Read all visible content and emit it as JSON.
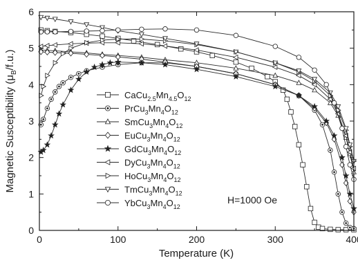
{
  "chart_data": {
    "type": "line",
    "xlabel": "Temperature (K)",
    "ylabel": "Magnetic Susceptibility (μB/f.u.)",
    "xlim": [
      0,
      400
    ],
    "ylim": [
      0,
      6
    ],
    "x_ticks": [
      0,
      100,
      200,
      300,
      400
    ],
    "y_ticks": [
      0,
      1,
      2,
      3,
      4,
      5,
      6
    ],
    "grid": false,
    "legend_placement": "left-middle",
    "annotation": "H=1000 Oe",
    "series": [
      {
        "name": "CaCu2.5Mn4.5O12",
        "label": {
          "base": "CaCu",
          "sub1": "2.5",
          "mid": "Mn",
          "sub2": "4.5",
          "end": "O",
          "sub3": "12"
        },
        "marker": "square",
        "x": [
          2,
          10,
          20,
          40,
          60,
          80,
          100,
          120,
          150,
          180,
          200,
          220,
          250,
          270,
          290,
          300,
          310,
          315,
          320,
          325,
          330,
          335,
          340,
          345,
          350,
          355,
          360,
          370,
          380,
          390,
          400
        ],
        "y": [
          5.5,
          5.48,
          5.46,
          5.43,
          5.38,
          5.33,
          5.27,
          5.2,
          5.1,
          4.98,
          4.9,
          4.8,
          4.62,
          4.45,
          4.22,
          4.08,
          3.85,
          3.6,
          3.25,
          2.85,
          2.35,
          1.8,
          1.2,
          0.6,
          0.22,
          0.09,
          0.05,
          0.03,
          0.02,
          0.02,
          0.02
        ]
      },
      {
        "name": "PrCu3Mn4O12",
        "label": {
          "base": "PrCu",
          "sub1": "3",
          "mid": "Mn",
          "sub2": "4",
          "end": "O",
          "sub3": "12"
        },
        "marker": "circle-dot",
        "x": [
          2,
          5,
          10,
          15,
          20,
          25,
          30,
          40,
          50,
          60,
          80,
          100,
          130,
          160,
          200,
          250,
          300,
          330,
          350,
          360,
          370,
          375,
          380,
          385,
          390,
          395,
          400
        ],
        "y": [
          2.9,
          3.05,
          3.35,
          3.6,
          3.8,
          3.95,
          4.05,
          4.2,
          4.3,
          4.38,
          4.48,
          4.55,
          4.6,
          4.6,
          4.5,
          4.3,
          4.0,
          3.7,
          3.3,
          2.9,
          2.2,
          1.6,
          1.0,
          0.5,
          0.2,
          0.08,
          0.05
        ]
      },
      {
        "name": "SmCu3Mn4O12",
        "label": {
          "base": "SmCu",
          "sub1": "3",
          "mid": "Mn",
          "sub2": "4",
          "end": "O",
          "sub3": "12"
        },
        "marker": "triangle-up",
        "x": [
          2,
          10,
          20,
          40,
          60,
          80,
          100,
          130,
          160,
          200,
          250,
          300,
          330,
          350,
          370,
          380,
          390,
          395,
          400
        ],
        "y": [
          4.95,
          4.94,
          4.93,
          4.9,
          4.87,
          4.83,
          4.8,
          4.75,
          4.68,
          4.6,
          4.45,
          4.25,
          4.05,
          3.85,
          3.5,
          3.15,
          2.55,
          2.1,
          1.6
        ]
      },
      {
        "name": "EuCu3Mn4O12",
        "label": {
          "base": "EuCu",
          "sub1": "3",
          "mid": "Mn",
          "sub2": "4",
          "end": "O",
          "sub3": "12"
        },
        "marker": "diamond",
        "x": [
          2,
          10,
          20,
          40,
          60,
          80,
          100,
          130,
          160,
          200,
          250,
          300,
          330,
          350,
          365,
          375,
          385,
          390,
          395,
          400
        ],
        "y": [
          4.9,
          4.89,
          4.88,
          4.86,
          4.83,
          4.8,
          4.76,
          4.7,
          4.62,
          4.5,
          4.3,
          4.0,
          3.7,
          3.35,
          2.95,
          2.5,
          1.8,
          1.3,
          0.8,
          0.5
        ]
      },
      {
        "name": "GdCu3Mn4O12",
        "label": {
          "base": "GdCu",
          "sub1": "3",
          "mid": "Mn",
          "sub2": "4",
          "end": "O",
          "sub3": "12"
        },
        "marker": "star",
        "x": [
          2,
          5,
          10,
          15,
          20,
          25,
          30,
          40,
          50,
          60,
          70,
          80,
          90,
          100,
          130,
          160,
          200,
          250,
          300,
          330,
          350,
          365,
          375,
          385,
          390,
          395,
          400
        ],
        "y": [
          2.15,
          2.2,
          2.35,
          2.6,
          2.9,
          3.2,
          3.45,
          3.85,
          4.15,
          4.35,
          4.48,
          4.55,
          4.6,
          4.62,
          4.6,
          4.55,
          4.42,
          4.22,
          3.95,
          3.7,
          3.4,
          3.0,
          2.6,
          2.0,
          1.5,
          1.0,
          0.6
        ]
      },
      {
        "name": "DyCu3Mn4O12",
        "label": {
          "base": "DyCu",
          "sub1": "3",
          "mid": "Mn",
          "sub2": "4",
          "end": "O",
          "sub3": "12"
        },
        "marker": "triangle-left",
        "x": [
          2,
          10,
          20,
          40,
          60,
          80,
          100,
          130,
          160,
          200,
          250,
          300,
          330,
          350,
          370,
          380,
          390,
          395,
          400
        ],
        "y": [
          5.05,
          5.07,
          5.09,
          5.12,
          5.14,
          5.15,
          5.15,
          5.12,
          5.06,
          4.95,
          4.75,
          4.48,
          4.25,
          4.0,
          3.6,
          3.2,
          2.6,
          2.15,
          1.7
        ]
      },
      {
        "name": "HoCu3Mn4O12",
        "label": {
          "base": "HoCu",
          "sub1": "3",
          "mid": "Mn",
          "sub2": "4",
          "end": "O",
          "sub3": "12"
        },
        "marker": "triangle-right",
        "x": [
          2,
          5,
          10,
          20,
          30,
          40,
          60,
          80,
          100,
          130,
          160,
          200,
          250,
          300,
          330,
          350,
          370,
          380,
          390,
          395,
          400
        ],
        "y": [
          3.7,
          3.95,
          4.25,
          4.6,
          4.85,
          5.0,
          5.15,
          5.22,
          5.25,
          5.25,
          5.2,
          5.1,
          4.9,
          4.6,
          4.35,
          4.1,
          3.7,
          3.3,
          2.75,
          2.3,
          1.9
        ]
      },
      {
        "name": "TmCu3Mn4O12",
        "label": {
          "base": "TmCu",
          "sub1": "3",
          "mid": "Mn",
          "sub2": "4",
          "end": "O",
          "sub3": "12"
        },
        "marker": "triangle-down",
        "x": [
          2,
          10,
          20,
          40,
          60,
          80,
          100,
          130,
          160,
          200,
          250,
          300,
          330,
          350,
          370,
          380,
          390,
          395,
          400
        ],
        "y": [
          5.85,
          5.83,
          5.8,
          5.73,
          5.65,
          5.57,
          5.48,
          5.38,
          5.27,
          5.12,
          4.9,
          4.6,
          4.38,
          4.15,
          3.78,
          3.4,
          2.8,
          2.35,
          1.9
        ]
      },
      {
        "name": "YbCu3Mn4O12",
        "label": {
          "base": "YbCu",
          "sub1": "3",
          "mid": "Mn",
          "sub2": "4",
          "end": "O",
          "sub3": "12"
        },
        "marker": "circle",
        "x": [
          2,
          10,
          20,
          40,
          60,
          80,
          100,
          130,
          160,
          200,
          250,
          300,
          330,
          350,
          365,
          375,
          385,
          390,
          395,
          400
        ],
        "y": [
          5.45,
          5.45,
          5.45,
          5.46,
          5.47,
          5.48,
          5.5,
          5.52,
          5.53,
          5.5,
          5.35,
          5.05,
          4.75,
          4.4,
          4.0,
          3.5,
          2.8,
          2.3,
          1.8,
          1.4
        ]
      }
    ]
  }
}
